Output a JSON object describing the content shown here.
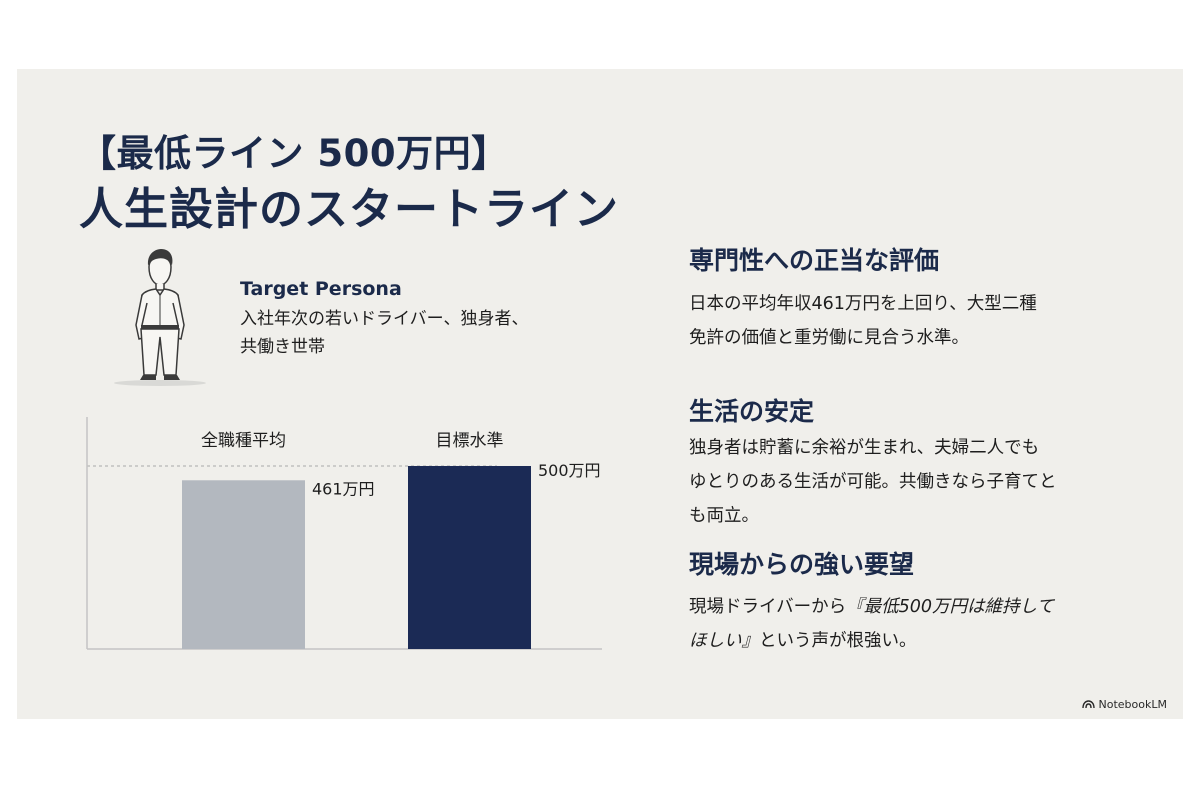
{
  "title": {
    "line1": "【最低ライン 500万円】",
    "line2": "人生設計のスタートライン"
  },
  "persona": {
    "label": "Target Persona",
    "desc_line1": "入社年次の若いドライバー、独身者、",
    "desc_line2": "共働き世帯",
    "icon": "person-icon"
  },
  "chart_data": {
    "type": "bar",
    "categories": [
      "全職種平均",
      "目標水準"
    ],
    "values": [
      461,
      500
    ],
    "value_labels": [
      "461万円",
      "500万円"
    ],
    "colors": [
      "#b3b8bf",
      "#1b2a55"
    ],
    "reference_line": 500
  },
  "sections": [
    {
      "heading": "専門性への正当な評価",
      "line1": "日本の平均年収461万円を上回り、大型二種",
      "line2": "免許の価値と重労働に見合う水準。"
    },
    {
      "heading": "生活の安定",
      "line1": "独身者は貯蓄に余裕が生まれ、夫婦二人でも",
      "line2": "ゆとりのある生活が可能。共働きなら子育てと",
      "line3": "も両立。"
    },
    {
      "heading": "現場からの強い要望",
      "line1_plain": "現場ドライバーから",
      "line1_italic": "『最低500万円は維持して",
      "line2_italic": "ほしい』",
      "line2_plain": "という声が根強い。"
    }
  ],
  "watermark": {
    "text": "NotebookLM",
    "icon": "notebooklm-logo-icon"
  }
}
